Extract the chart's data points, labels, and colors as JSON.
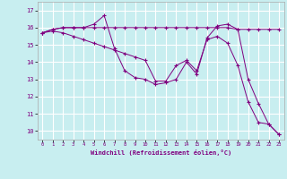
{
  "xlabel": "Windchill (Refroidissement éolien,°C)",
  "bg_color": "#c8eef0",
  "grid_color": "#ffffff",
  "line_color": "#800080",
  "ylim": [
    9.5,
    17.5
  ],
  "xlim": [
    -0.5,
    23.5
  ],
  "yticks": [
    10,
    11,
    12,
    13,
    14,
    15,
    16,
    17
  ],
  "xticks": [
    0,
    1,
    2,
    3,
    4,
    5,
    6,
    7,
    8,
    9,
    10,
    11,
    12,
    13,
    14,
    15,
    16,
    17,
    18,
    19,
    20,
    21,
    22,
    23
  ],
  "line1_x": [
    0,
    1,
    2,
    3,
    4,
    5,
    6,
    7,
    8,
    9,
    10,
    11,
    12,
    13,
    14,
    15,
    16,
    17,
    18,
    19,
    20,
    21,
    22,
    23
  ],
  "line1_y": [
    15.7,
    15.9,
    16.0,
    16.0,
    16.0,
    16.2,
    16.7,
    14.8,
    13.5,
    13.1,
    13.0,
    12.7,
    12.8,
    13.0,
    14.0,
    13.3,
    15.4,
    16.1,
    16.2,
    15.9,
    13.0,
    11.6,
    10.4,
    9.8
  ],
  "line2_x": [
    0,
    1,
    2,
    3,
    4,
    5,
    6,
    7,
    8,
    9,
    10,
    11,
    12,
    13,
    14,
    15,
    16,
    17,
    18,
    19,
    20,
    21,
    22,
    23
  ],
  "line2_y": [
    15.7,
    15.9,
    16.0,
    16.0,
    16.0,
    16.0,
    16.0,
    16.0,
    16.0,
    16.0,
    16.0,
    16.0,
    16.0,
    16.0,
    16.0,
    16.0,
    16.0,
    16.0,
    16.0,
    15.9,
    15.9,
    15.9,
    15.9,
    15.9
  ],
  "line3_x": [
    0,
    1,
    2,
    3,
    4,
    5,
    6,
    7,
    8,
    9,
    10,
    11,
    12,
    13,
    14,
    15,
    16,
    17,
    18,
    19,
    20,
    21,
    22,
    23
  ],
  "line3_y": [
    15.7,
    15.8,
    15.7,
    15.5,
    15.3,
    15.1,
    14.9,
    14.7,
    14.5,
    14.3,
    14.1,
    12.9,
    12.9,
    13.8,
    14.1,
    13.5,
    15.3,
    15.5,
    15.1,
    13.8,
    11.7,
    10.5,
    10.4,
    9.8
  ]
}
